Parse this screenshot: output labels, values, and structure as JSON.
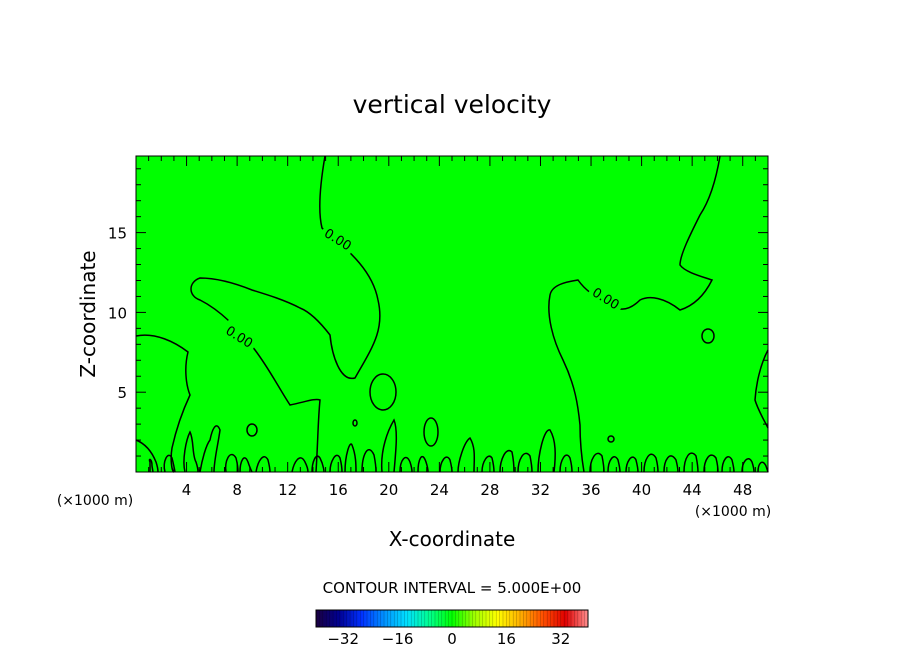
{
  "chart_data": {
    "type": "contour",
    "title": "vertical velocity",
    "xlabel": "X-coordinate",
    "ylabel": "Z-coordinate",
    "x_unit": "(×1000 m)",
    "y_unit": "(×1000 m)",
    "xlim": [
      0,
      50
    ],
    "ylim": [
      0,
      19.8
    ],
    "x_ticks": [
      4,
      8,
      12,
      16,
      20,
      24,
      28,
      32,
      36,
      40,
      44,
      48
    ],
    "y_ticks": [
      5,
      10,
      15
    ],
    "contour_interval_text": "CONTOUR INTERVAL = 5.000E+00",
    "contour_labels": [
      {
        "text": "0.00",
        "x": 16.0,
        "y": 14.6
      },
      {
        "text": "0.00",
        "x": 8.2,
        "y": 8.5
      },
      {
        "text": "0.00",
        "x": 37.2,
        "y": 10.9
      }
    ],
    "field_color": "#00ff00",
    "colorbar": {
      "min": -40,
      "max": 40,
      "ticks": [
        -32,
        -16,
        0,
        16,
        32
      ],
      "tick_labels": [
        "−32",
        "−16",
        "0",
        "16",
        "32"
      ],
      "colors": [
        "#1a0040",
        "#000090",
        "#0030ff",
        "#0090ff",
        "#00e0ff",
        "#00ff90",
        "#00ff00",
        "#a0ff00",
        "#ffff00",
        "#ffb000",
        "#ff5000",
        "#e00000",
        "#ff9090"
      ]
    }
  }
}
